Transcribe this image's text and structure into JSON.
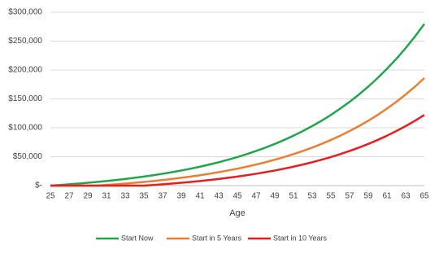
{
  "chart_data": {
    "type": "line",
    "x": [
      25,
      26,
      27,
      28,
      29,
      30,
      31,
      32,
      33,
      34,
      35,
      36,
      37,
      38,
      39,
      40,
      41,
      42,
      43,
      44,
      45,
      46,
      47,
      48,
      49,
      50,
      51,
      52,
      53,
      54,
      55,
      56,
      57,
      58,
      59,
      60,
      61,
      62,
      63,
      64,
      65
    ],
    "xlim": [
      25,
      65
    ],
    "xticks": [
      25,
      27,
      29,
      31,
      33,
      35,
      37,
      39,
      41,
      43,
      45,
      47,
      49,
      51,
      53,
      55,
      57,
      59,
      61,
      63,
      65
    ],
    "xlabel": "Age",
    "ylim": [
      0,
      300000
    ],
    "yticks": [
      {
        "value": 0,
        "label": "$-"
      },
      {
        "value": 50000,
        "label": "$50,000"
      },
      {
        "value": 100000,
        "label": "$100,000"
      },
      {
        "value": 150000,
        "label": "$150,000"
      },
      {
        "value": 200000,
        "label": "$200,000"
      },
      {
        "value": 250000,
        "label": "$250,000"
      },
      {
        "value": 300000,
        "label": "$300,000"
      }
    ],
    "grid": true,
    "legend": "bottom",
    "series": [
      {
        "name": "Start Now",
        "color": "#1fa64a",
        "values": [
          0,
          1080,
          2246,
          3506,
          4867,
          6336,
          7923,
          9636,
          11487,
          13487,
          15645,
          17977,
          20496,
          23215,
          26152,
          29325,
          32750,
          36450,
          40446,
          44762,
          49424,
          54456,
          59893,
          65765,
          72106,
          78955,
          86351,
          94339,
          102966,
          112284,
          122346,
          133214,
          144951,
          157626,
          171316,
          186102,
          202071,
          219316,
          237942,
          258057,
          279781
        ]
      },
      {
        "name": "Start in 5 Years",
        "color": "#ed7d31",
        "values": [
          0,
          0,
          0,
          0,
          0,
          0,
          1080,
          2246,
          3506,
          4867,
          6336,
          7923,
          9636,
          11487,
          13487,
          15645,
          17977,
          20496,
          23215,
          26152,
          29325,
          32750,
          36450,
          40446,
          44762,
          49424,
          54456,
          59893,
          65765,
          72106,
          78955,
          86351,
          94339,
          102966,
          112284,
          122346,
          133214,
          144951,
          157626,
          171316,
          186102
        ]
      },
      {
        "name": "Start in 10 Years",
        "color": "#e81e1e",
        "values": [
          0,
          0,
          0,
          0,
          0,
          0,
          0,
          0,
          0,
          0,
          0,
          1080,
          2246,
          3506,
          4867,
          6336,
          7923,
          9636,
          11487,
          13487,
          15645,
          17977,
          20496,
          23215,
          26152,
          29325,
          32750,
          36450,
          40446,
          44762,
          49424,
          54456,
          59893,
          65765,
          72106,
          78955,
          86351,
          94339,
          102966,
          112284,
          122346
        ]
      }
    ]
  }
}
